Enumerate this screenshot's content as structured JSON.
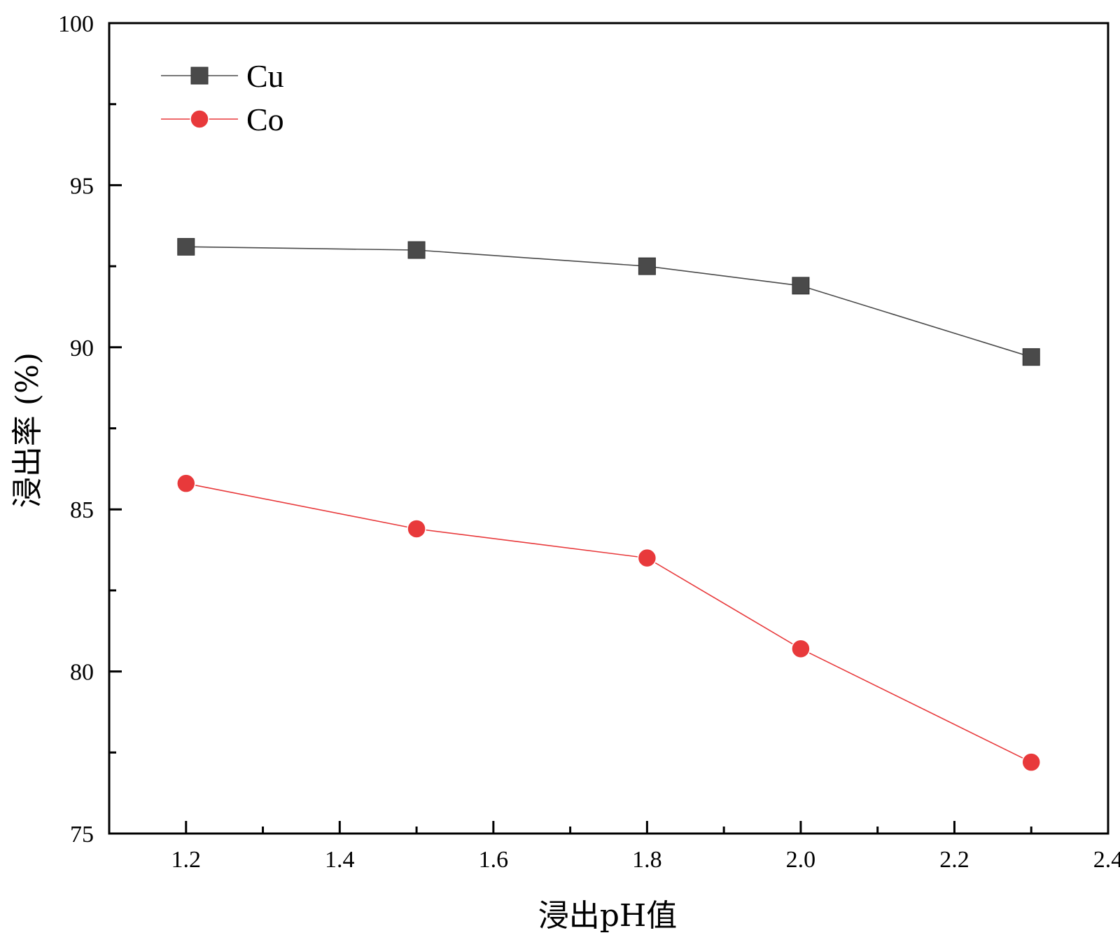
{
  "chart_data": {
    "type": "line",
    "title": "",
    "xlabel": "浸出pH值",
    "ylabel": "浸出率 (%)",
    "xlim": [
      1.1,
      2.4
    ],
    "ylim": [
      75,
      100
    ],
    "x_ticks": [
      1.2,
      1.4,
      1.6,
      1.8,
      2.0,
      2.2,
      2.4
    ],
    "x_tick_labels": [
      "1.2",
      "1.4",
      "1.6",
      "1.8",
      "2.0",
      "2.2",
      "2.4"
    ],
    "y_ticks": [
      75,
      80,
      85,
      90,
      95,
      100
    ],
    "y_tick_labels": [
      "75",
      "80",
      "85",
      "90",
      "95",
      "100"
    ],
    "grid": false,
    "legend_position": "top-left",
    "x": [
      1.2,
      1.5,
      1.8,
      2.0,
      2.3
    ],
    "series": [
      {
        "name": "Cu",
        "values": [
          93.1,
          93.0,
          92.5,
          91.9,
          89.7
        ],
        "color": "#4a4a4a",
        "marker": "square"
      },
      {
        "name": "Co",
        "values": [
          85.8,
          84.4,
          83.5,
          80.7,
          77.2
        ],
        "color": "#e8393b",
        "marker": "circle"
      }
    ]
  }
}
